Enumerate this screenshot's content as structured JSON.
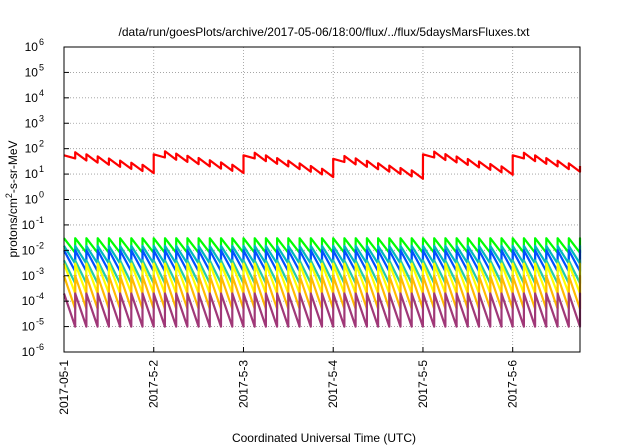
{
  "chart_data": {
    "type": "line",
    "title": "/data/run/goesPlots/archive/2017-05-06/18:00/flux/../flux/5daysMarsFluxes.txt",
    "xlabel": "Coordinated Universal Time (UTC)",
    "ylabel": "protons/cm²-s-sr-MeV",
    "ylabel_main": "protons/cm",
    "ylabel_sup": "2",
    "ylabel_rest": "-s-sr-MeV",
    "yscale": "log",
    "ylim": [
      1e-06,
      1000000.0
    ],
    "xlim": [
      "2017-05-01",
      "2017-05-06T18:00"
    ],
    "x_tick_labels": [
      "2017-05-1",
      "2017-5-2",
      "2017-5-3",
      "2017-5-4",
      "2017-5-5",
      "2017-5-6"
    ],
    "y_tick_mantissa": "10",
    "y_tick_exponents": [
      "-6",
      "-5",
      "-4",
      "-3",
      "-2",
      "-1",
      "0",
      "1",
      "2",
      "3",
      "4",
      "5",
      "6"
    ],
    "grid": true,
    "legend": "none",
    "series": [
      {
        "color": "#ff0000",
        "pattern": "sawtooth",
        "period_days": 1.0,
        "teeth": [
          {
            "x": "2017-05-01T00:00",
            "low": 12,
            "peak": 55
          },
          {
            "x": "2017-05-02T00:00",
            "low": 12,
            "peak": 60
          },
          {
            "x": "2017-05-03T00:00",
            "low": 8,
            "peak": 55
          },
          {
            "x": "2017-05-04T00:00",
            "low": 7,
            "peak": 40
          },
          {
            "x": "2017-05-05T00:00",
            "low": 10,
            "peak": 60
          },
          {
            "x": "2017-05-06T00:00",
            "low": 8,
            "peak": 55
          }
        ],
        "sub_period_days": 0.125,
        "sub_amplitude": 5
      },
      {
        "color": "#00ff00",
        "pattern": "sawtooth",
        "period_days": 0.125,
        "low": 0.008,
        "peak": 0.03
      },
      {
        "color": "#00bbbb",
        "pattern": "sawtooth",
        "period_days": 0.125,
        "low": 0.003,
        "peak": 0.015
      },
      {
        "color": "#0050ff",
        "pattern": "sawtooth",
        "period_days": 0.125,
        "low": 0.0015,
        "peak": 0.01
      },
      {
        "color": "#22ccaa",
        "pattern": "sawtooth",
        "period_days": 0.125,
        "low": 0.0005,
        "peak": 0.004
      },
      {
        "color": "#ffff00",
        "pattern": "sawtooth",
        "period_days": 0.125,
        "low": 0.0002,
        "peak": 0.003
      },
      {
        "color": "#ffbb00",
        "pattern": "sawtooth",
        "period_days": 0.125,
        "low": 5e-05,
        "peak": 0.001
      },
      {
        "color": "#a03878",
        "pattern": "sawtooth",
        "period_days": 0.125,
        "low": 1e-05,
        "peak": 0.0002
      }
    ]
  }
}
